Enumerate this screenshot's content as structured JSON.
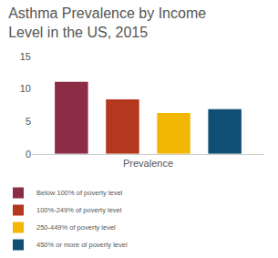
{
  "chart_data": {
    "type": "bar",
    "title": "Asthma Prevalence by Income Level in the US, 2015",
    "categories": [
      "Prevalence"
    ],
    "series": [
      {
        "name": "Below 100% of poverty level",
        "color": "#8b2d45",
        "values": [
          11.1
        ]
      },
      {
        "name": "100%-249% of poverty level",
        "color": "#b3381e",
        "values": [
          8.4
        ]
      },
      {
        "name": "250-449% of poverty level",
        "color": "#f2b705",
        "values": [
          6.3
        ]
      },
      {
        "name": "450% or more of poverty level",
        "color": "#0e4f73",
        "values": [
          6.9
        ]
      }
    ],
    "ylim": [
      0,
      15
    ],
    "yticks": [
      0,
      5,
      10,
      15
    ],
    "grid": false,
    "legend": "bottom"
  }
}
